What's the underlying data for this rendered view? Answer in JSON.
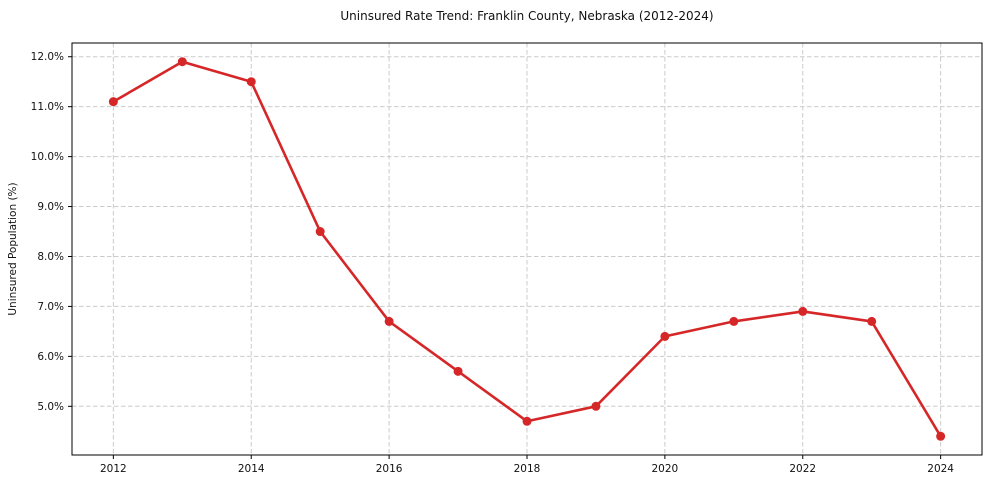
{
  "chart_data": {
    "type": "line",
    "title": "Uninsured Rate Trend: Franklin County, Nebraska (2012-2024)",
    "xlabel": "",
    "ylabel": "Uninsured Population (%)",
    "x": [
      2012,
      2013,
      2014,
      2015,
      2016,
      2017,
      2018,
      2019,
      2020,
      2021,
      2022,
      2023,
      2024
    ],
    "values": [
      11.1,
      11.9,
      11.5,
      8.5,
      6.7,
      5.7,
      4.7,
      5.0,
      6.4,
      6.7,
      6.9,
      6.7,
      4.4
    ],
    "unit": "%",
    "xlim": [
      2011.4,
      2024.6
    ],
    "ylim": [
      4.025,
      12.275
    ],
    "x_ticks": [
      2012,
      2014,
      2016,
      2018,
      2020,
      2022,
      2024
    ],
    "x_tick_labels": [
      "2012",
      "2014",
      "2016",
      "2018",
      "2020",
      "2022",
      "2024"
    ],
    "y_ticks": [
      5.0,
      6.0,
      7.0,
      8.0,
      9.0,
      10.0,
      11.0,
      12.0
    ],
    "y_tick_labels": [
      "5.0%",
      "6.0%",
      "7.0%",
      "8.0%",
      "9.0%",
      "10.0%",
      "11.0%",
      "12.0%"
    ],
    "grid": "dashed both axes",
    "legend": "none",
    "colors": {
      "line": "#d62728",
      "marker": "#d62728",
      "grid": "#cbcbcb",
      "spine": "#000000",
      "text": "#111111",
      "background": "#ffffff"
    }
  }
}
